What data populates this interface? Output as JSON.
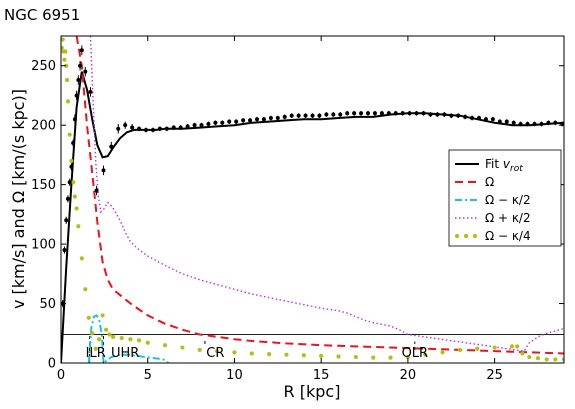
{
  "chart_data": {
    "type": "line",
    "title": "NGC 6951",
    "xlabel": "R [kpc]",
    "ylabel": "v [km/s] and Ω [km/(s kpc)]",
    "xlim": [
      0,
      29
    ],
    "ylim": [
      0,
      275
    ],
    "xticks": [
      0,
      5,
      10,
      15,
      20,
      25
    ],
    "yticks": [
      0,
      50,
      100,
      150,
      200,
      250
    ],
    "grid": false,
    "legend_position": "right",
    "reference_line": {
      "y": 24
    },
    "resonance_labels": [
      {
        "text": "ILR",
        "x": 2.0,
        "y": 5
      },
      {
        "text": "UHR",
        "x": 3.7,
        "y": 5
      },
      {
        "text": "CR",
        "x": 8.9,
        "y": 5
      },
      {
        "text": "OLR",
        "x": 20.4,
        "y": 5
      }
    ],
    "resonance_marks": [
      {
        "x": 1.65,
        "y0": 0,
        "y1": 24
      },
      {
        "x": 2.45,
        "y0": 0,
        "y1": 24
      },
      {
        "x": 8.3,
        "y0": 16,
        "y1": 21
      },
      {
        "x": 20.4,
        "y0": 11,
        "y1": 18
      }
    ],
    "observed": {
      "x": [
        0.1,
        0.2,
        0.3,
        0.4,
        0.5,
        0.6,
        0.7,
        0.8,
        0.9,
        1.0,
        1.1,
        1.2,
        1.4,
        1.7,
        2.05,
        2.45,
        2.9,
        3.3,
        3.7,
        4.1,
        4.5,
        4.9,
        5.3,
        5.7,
        6.1,
        6.5,
        6.9,
        7.3,
        7.7,
        8.1,
        8.5,
        8.9,
        9.3,
        9.7,
        10.1,
        10.5,
        10.9,
        11.3,
        11.7,
        12.1,
        12.5,
        12.9,
        13.3,
        13.7,
        14.1,
        14.5,
        14.9,
        15.3,
        15.7,
        16.1,
        16.5,
        16.9,
        17.3,
        17.7,
        18.1,
        18.5,
        18.9,
        19.3,
        19.7,
        20.1,
        20.5,
        20.9,
        21.3,
        21.7,
        22.1,
        22.5,
        22.9,
        23.3,
        23.7,
        24.1,
        24.5,
        24.9,
        25.3,
        25.7,
        26.1,
        26.5,
        26.9,
        27.3,
        27.7,
        28.1,
        28.5,
        28.9
      ],
      "y": [
        50,
        95,
        120,
        138,
        152,
        165,
        185,
        205,
        225,
        238,
        250,
        263,
        245,
        228,
        145,
        162,
        182,
        197,
        200,
        198,
        197,
        196,
        196,
        197,
        197,
        198,
        198,
        199,
        200,
        200,
        201,
        202,
        202,
        203,
        203,
        204,
        204,
        205,
        205,
        206,
        206,
        207,
        208,
        208,
        208,
        208,
        208,
        209,
        209,
        209,
        210,
        210,
        210,
        210,
        210,
        210,
        210,
        210,
        210,
        210,
        210,
        210,
        209,
        209,
        209,
        208,
        208,
        207,
        206,
        206,
        205,
        205,
        203,
        203,
        202,
        201,
        201,
        201,
        201,
        202,
        202,
        201
      ],
      "error": [
        3,
        3,
        3,
        3,
        3,
        3,
        3,
        4,
        4,
        4,
        4,
        4,
        4,
        4,
        4,
        4,
        4,
        4,
        3,
        3,
        2,
        2,
        2,
        2,
        2,
        2,
        2,
        2,
        2,
        2,
        2,
        2,
        2,
        2,
        2,
        2,
        2,
        2,
        2,
        2,
        2,
        2,
        2,
        2,
        2,
        2,
        2,
        2,
        2,
        2,
        2,
        2,
        2,
        2,
        2,
        2,
        2,
        2,
        2,
        2,
        2,
        2,
        2,
        2,
        2,
        2,
        2,
        2,
        2,
        2,
        2,
        2,
        2,
        2,
        2,
        2,
        2,
        2,
        2,
        2,
        2,
        2
      ]
    },
    "series": [
      {
        "name": "Fit v_rot",
        "style": "solid",
        "color": "#000000",
        "x": [
          0,
          0.3,
          0.6,
          0.9,
          1.2,
          1.5,
          1.8,
          2.1,
          2.4,
          2.7,
          3.0,
          3.4,
          3.8,
          4.2,
          4.6,
          5.0,
          5.5,
          6.0,
          7.0,
          8.0,
          9.0,
          10.0,
          11.0,
          12.0,
          13.0,
          14.0,
          15.0,
          16.0,
          17.0,
          18.0,
          19.0,
          20.0,
          21.0,
          22.0,
          23.0,
          24.0,
          25.0,
          26.0,
          26.5,
          27.0,
          28.0,
          29.0
        ],
        "y": [
          0,
          80,
          150,
          215,
          245,
          230,
          205,
          183,
          173,
          174,
          181,
          189,
          194,
          196,
          196,
          196,
          196,
          197,
          197,
          198,
          199,
          200,
          202,
          203,
          204,
          205,
          205,
          206,
          207,
          207,
          209,
          210,
          210,
          209,
          208,
          205,
          202,
          200,
          200,
          200,
          201,
          202
        ]
      },
      {
        "name": "Ω",
        "style": "dashed",
        "color": "#e8141e",
        "x": [
          0.9,
          1.2,
          1.5,
          1.8,
          2.1,
          2.4,
          2.7,
          3.0,
          3.5,
          4.0,
          4.5,
          5.0,
          6.0,
          7.0,
          8.0,
          9.0,
          10.0,
          11.0,
          12.0,
          13.0,
          14.0,
          15.0,
          16.0,
          17.0,
          18.0,
          19.0,
          20.0,
          21.0,
          22.0,
          23.0,
          24.0,
          25.0,
          26.0,
          27.0,
          28.0,
          29.0
        ],
        "y": [
          275,
          250,
          200,
          160,
          118,
          85,
          70,
          62,
          56,
          50,
          45,
          40,
          33,
          28,
          24,
          22,
          20,
          18.5,
          17.5,
          16.5,
          15.8,
          15,
          14.5,
          14,
          13.5,
          13,
          12.5,
          12,
          11.5,
          11,
          10.5,
          10,
          9.5,
          9,
          8.5,
          8
        ]
      },
      {
        "name": "Ω − κ/2",
        "style": "dashdot",
        "color": "#19c4d9",
        "x": [
          1.6,
          1.75,
          1.9,
          2.05,
          2.2,
          2.35,
          2.45,
          2.9,
          3.4,
          3.9,
          4.4,
          4.9,
          5.4,
          5.9,
          6.2
        ],
        "y": [
          0,
          30,
          39,
          40,
          36,
          24,
          0,
          5,
          7,
          7,
          6,
          5,
          4,
          3,
          0
        ]
      },
      {
        "name": "Ω + κ/2",
        "style": "dotted",
        "color": "#c030e0",
        "x": [
          1.7,
          1.85,
          2.0,
          2.15,
          2.3,
          2.5,
          2.7,
          2.9,
          3.1,
          3.4,
          3.7,
          4.0,
          4.5,
          5.0,
          6.0,
          7.0,
          8.0,
          9.0,
          10.0,
          11.0,
          12.0,
          13.0,
          14.0,
          15.0,
          16.0,
          16.5,
          17.0,
          17.5,
          18.0,
          19.0,
          19.5,
          20.0,
          26.7,
          27.0,
          27.5,
          28.0,
          28.5,
          29.0
        ],
        "y": [
          275,
          220,
          170,
          140,
          127,
          130,
          135,
          132,
          128,
          120,
          110,
          102,
          95,
          90,
          82,
          75,
          70,
          66,
          62,
          58,
          55,
          52,
          49,
          46,
          44,
          42,
          39,
          36,
          34,
          31,
          28,
          24,
          10,
          17,
          22,
          25,
          27,
          29
        ]
      },
      {
        "name": "Ω − κ/4",
        "style": "dots",
        "color": "#b5bd16",
        "x": [
          0.05,
          0.1,
          0.15,
          0.2,
          0.25,
          0.3,
          0.35,
          0.4,
          0.5,
          0.6,
          0.7,
          0.8,
          0.9,
          1.0,
          1.2,
          1.4,
          1.6,
          1.8,
          2.0,
          2.2,
          2.4,
          2.6,
          2.8,
          3.0,
          3.5,
          4.0,
          4.5,
          5.0,
          6.0,
          7.0,
          8.0,
          9.0,
          10.0,
          11.0,
          12.0,
          13.0,
          14.0,
          15.0,
          16.0,
          17.0,
          18.0,
          19.0,
          20.0,
          21.0,
          22.0,
          23.0,
          24.0,
          25.0,
          26.0,
          26.3,
          26.6,
          27.0,
          27.5,
          28.0,
          28.5,
          29.0
        ],
        "y": [
          265,
          272,
          262,
          255,
          262,
          250,
          238,
          220,
          192,
          170,
          152,
          140,
          130,
          115,
          88,
          62,
          38,
          25,
          12,
          20,
          40,
          28,
          24,
          22,
          21,
          20,
          19,
          17,
          15,
          13,
          11,
          10,
          9,
          8,
          7.5,
          7,
          6.5,
          6,
          5.5,
          5,
          4.5,
          4.5,
          5,
          7,
          9,
          11,
          12,
          13,
          14,
          14,
          8,
          5,
          4,
          3,
          3,
          3
        ]
      }
    ]
  },
  "legend": {
    "items": [
      {
        "label": "Fit ",
        "math": "v_rot"
      },
      {
        "label": "Ω",
        "math": ""
      },
      {
        "label": "Ω − κ/2",
        "math": ""
      },
      {
        "label": "Ω + κ/2",
        "math": ""
      },
      {
        "label": "Ω − κ/4",
        "math": ""
      }
    ]
  }
}
